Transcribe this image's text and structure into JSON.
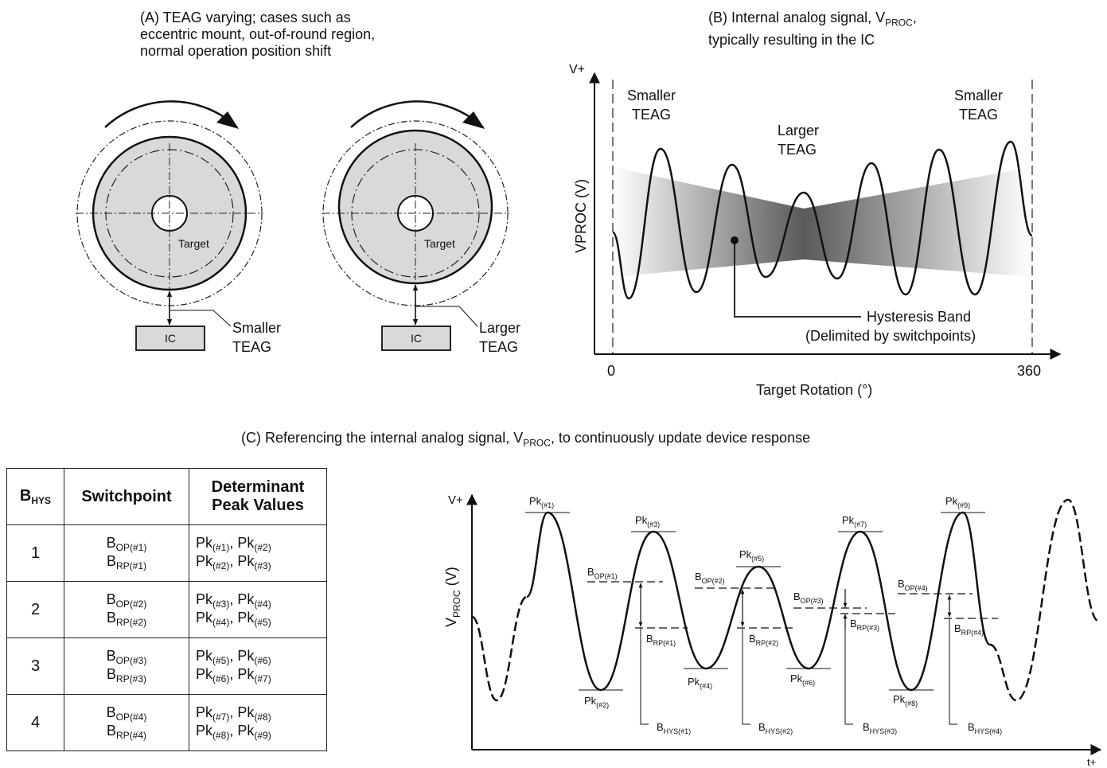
{
  "panel_a": {
    "caption": [
      "(A) TEAG varying; cases such as",
      "eccentric mount, out-of-round region,",
      "normal operation position shift"
    ],
    "target_label": "Target",
    "ic_label": "IC",
    "left_gap_label": [
      "Smaller",
      "TEAG"
    ],
    "right_gap_label": [
      "Larger",
      "TEAG"
    ]
  },
  "panel_b": {
    "caption_line1_pre": "(B) Internal analog signal, V",
    "caption_line1_sub": "PROC",
    "caption_line1_post": ",",
    "caption_line2": "typically resulting in the IC",
    "y_top_label": "V+",
    "y_axis_label": "VPROC (V)",
    "x_axis_label": "Target Rotation (°)",
    "x_start": "0",
    "x_end": "360",
    "left_region": [
      "Smaller",
      "TEAG"
    ],
    "middle_region": [
      "Larger",
      "TEAG"
    ],
    "right_region": [
      "Smaller",
      "TEAG"
    ],
    "band_label": [
      "Hysteresis Band",
      "(Delimited by switchpoints)"
    ]
  },
  "panel_c": {
    "caption_pre": "(C) Referencing the internal analog signal, V",
    "caption_sub": "PROC",
    "caption_post": ", to continuously update device response",
    "y_top_label": "V+",
    "y_axis_label": "V",
    "y_axis_sub": "PROC",
    "y_axis_unit": " (V)",
    "x_end_label": "t+",
    "peaks": [
      {
        "base": "Pk",
        "sub": "(#1)"
      },
      {
        "base": "Pk",
        "sub": "(#2)"
      },
      {
        "base": "Pk",
        "sub": "(#3)"
      },
      {
        "base": "Pk",
        "sub": "(#4)"
      },
      {
        "base": "Pk",
        "sub": "(#5)"
      },
      {
        "base": "Pk",
        "sub": "(#6)"
      },
      {
        "base": "Pk",
        "sub": "(#7)"
      },
      {
        "base": "Pk",
        "sub": "(#8)"
      },
      {
        "base": "Pk",
        "sub": "(#9)"
      }
    ],
    "bop": [
      {
        "base": "B",
        "sub": "OP(#1)"
      },
      {
        "base": "B",
        "sub": "OP(#2)"
      },
      {
        "base": "B",
        "sub": "OP(#3)"
      },
      {
        "base": "B",
        "sub": "OP(#4)"
      }
    ],
    "brp": [
      {
        "base": "B",
        "sub": "RP(#1)"
      },
      {
        "base": "B",
        "sub": "RP(#2)"
      },
      {
        "base": "B",
        "sub": "RP(#3)"
      },
      {
        "base": "B",
        "sub": "RP(#4)"
      }
    ],
    "bhys": [
      {
        "base": "B",
        "sub": "HYS(#1)"
      },
      {
        "base": "B",
        "sub": "HYS(#2)"
      },
      {
        "base": "B",
        "sub": "HYS(#3)"
      },
      {
        "base": "B",
        "sub": "HYS(#4)"
      }
    ]
  },
  "table": {
    "headers": {
      "bhys_base": "B",
      "bhys_sub": "HYS",
      "switchpoint": "Switchpoint",
      "determinant_line1": "Determinant",
      "determinant_line2": "Peak Values"
    },
    "rows": [
      {
        "n": "1",
        "op_sub": "OP(#1)",
        "rp_sub": "RP(#1)",
        "op_pk": [
          "(#1)",
          "(#2)"
        ],
        "rp_pk": [
          "(#2)",
          "(#3)"
        ]
      },
      {
        "n": "2",
        "op_sub": "OP(#2)",
        "rp_sub": "RP(#2)",
        "op_pk": [
          "(#3)",
          "(#4)"
        ],
        "rp_pk": [
          "(#4)",
          "(#5)"
        ]
      },
      {
        "n": "3",
        "op_sub": "OP(#3)",
        "rp_sub": "RP(#3)",
        "op_pk": [
          "(#5)",
          "(#6)"
        ],
        "rp_pk": [
          "(#6)",
          "(#7)"
        ]
      },
      {
        "n": "4",
        "op_sub": "OP(#4)",
        "rp_sub": "RP(#4)",
        "op_pk": [
          "(#7)",
          "(#8)"
        ],
        "rp_pk": [
          "(#8)",
          "(#9)"
        ]
      }
    ]
  }
}
